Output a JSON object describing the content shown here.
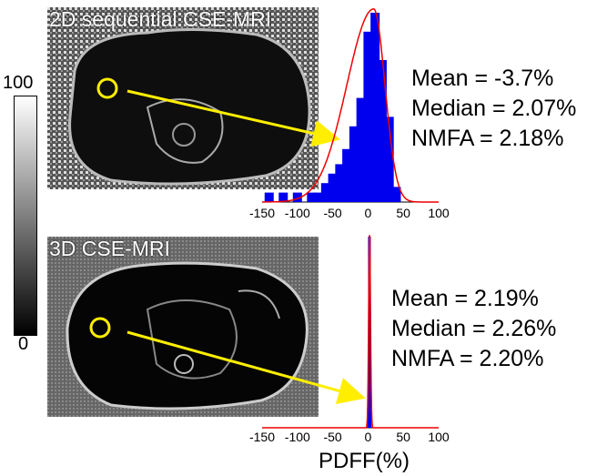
{
  "colorbar": {
    "max_label": "100",
    "min_label": "0"
  },
  "panels": [
    {
      "label": "2D sequential CSE-MRI",
      "stats": {
        "mean": "Mean = -3.7%",
        "median": "Median = 2.07%",
        "nmfa": "NMFA = 2.18%"
      }
    },
    {
      "label": "3D CSE-MRI",
      "stats": {
        "mean": "Mean = 2.19%",
        "median": "Median = 2.26%",
        "nmfa": "NMFA = 2.20%"
      }
    }
  ],
  "xaxis": {
    "ticks": [
      "-150",
      "-100",
      "-50",
      "0",
      "50",
      "100"
    ],
    "label": "PDFF(%)"
  },
  "colors": {
    "roi": "#ffee00",
    "bars": "#0000ee",
    "fit": "#ee0000"
  },
  "chart_data": [
    {
      "type": "bar",
      "title": "2D sequential CSE-MRI",
      "xlabel": "",
      "ylabel": "",
      "xlim": [
        -150,
        100
      ],
      "categories": [
        -140,
        -130,
        -120,
        -110,
        -100,
        -90,
        -80,
        -70,
        -60,
        -50,
        -40,
        -30,
        -20,
        -10,
        0,
        10,
        20,
        30,
        40
      ],
      "values": [
        0.05,
        0.0,
        0.05,
        0.0,
        0.05,
        0.0,
        0.05,
        0.05,
        0.1,
        0.15,
        0.2,
        0.28,
        0.4,
        0.55,
        0.9,
        1.0,
        0.75,
        0.45,
        0.08
      ],
      "fit": {
        "shape": "skewed-gaussian",
        "peak_x": 8,
        "peak": 1.0
      }
    },
    {
      "type": "bar",
      "title": "3D CSE-MRI",
      "xlabel": "PDFF(%)",
      "ylabel": "",
      "xlim": [
        -150,
        100
      ],
      "categories": [
        1,
        2,
        3
      ],
      "values": [
        0.2,
        1.0,
        0.2
      ],
      "fit": {
        "shape": "gaussian",
        "peak_x": 2.2,
        "peak": 1.0
      }
    }
  ]
}
